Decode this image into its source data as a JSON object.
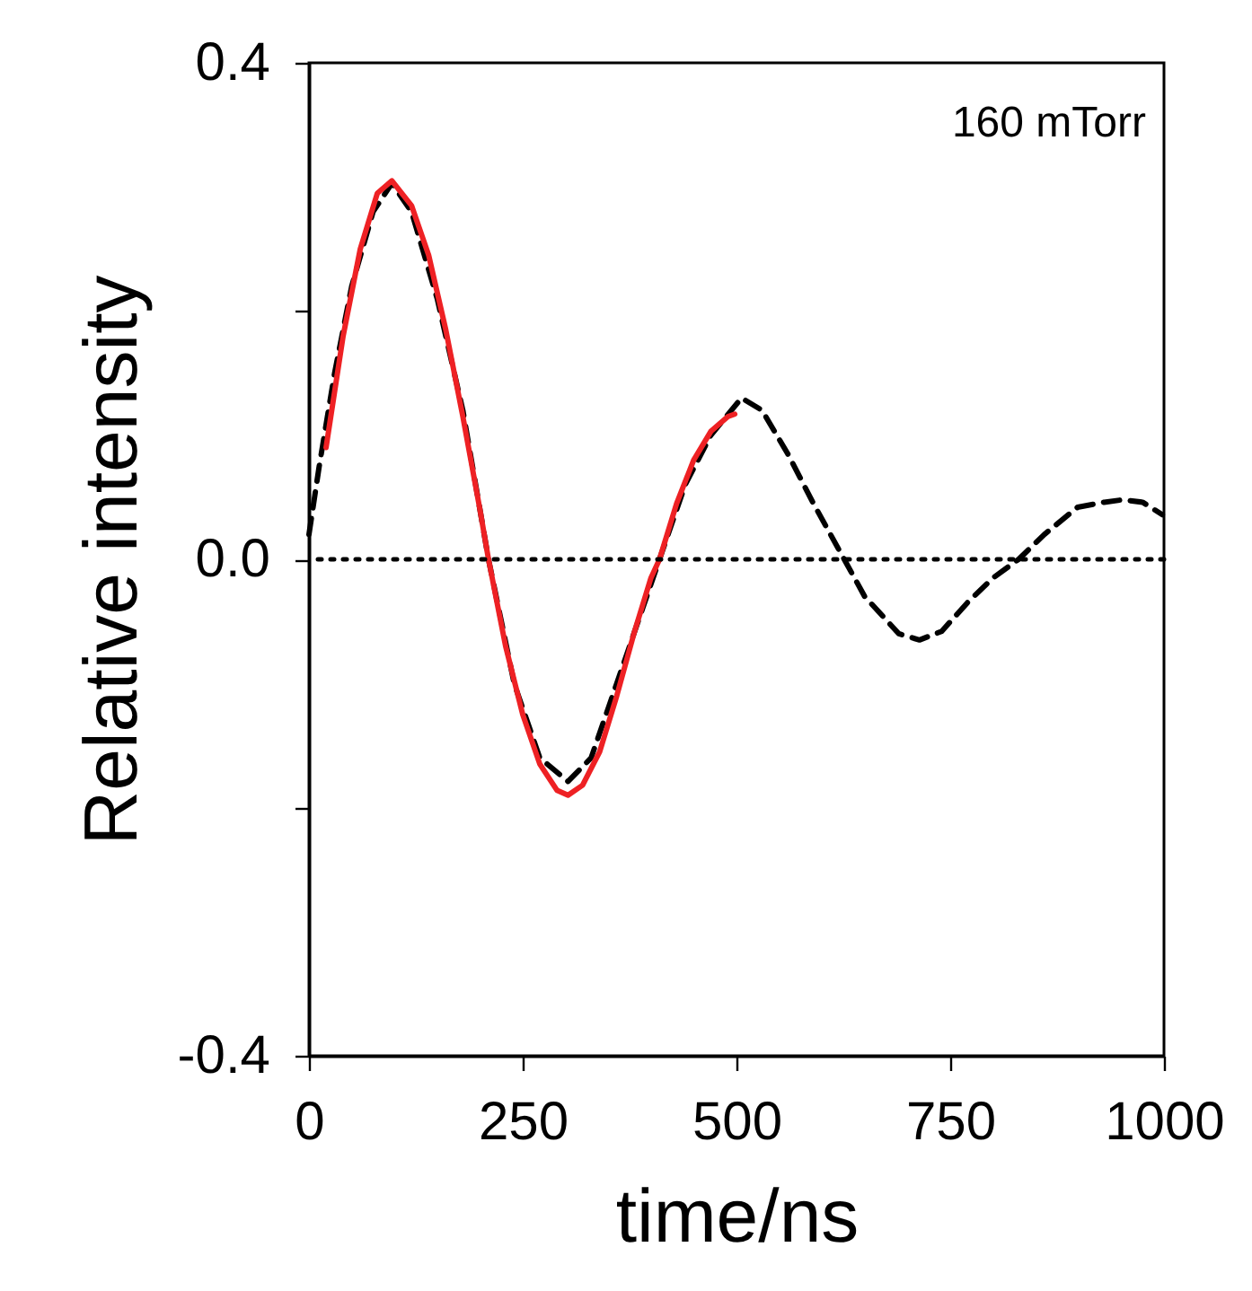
{
  "chart_data": {
    "type": "line",
    "xlabel": "time/ns",
    "ylabel": "Relative intensity",
    "xlim": [
      0,
      1000
    ],
    "xticks": [
      0,
      250,
      500,
      750,
      1000
    ],
    "ylim": [
      -0.4,
      0.4
    ],
    "yticks": [
      {
        "value": -0.4,
        "label": "-0.4"
      },
      {
        "value": -0.2,
        "label": null
      },
      {
        "value": 0,
        "label": "0.0"
      },
      {
        "value": 0.2,
        "label": null
      },
      {
        "value": 0.4,
        "label": "0.4"
      }
    ],
    "grid": false,
    "marker": "none",
    "annotations": [
      "160 mTorr"
    ],
    "ref_lines": [
      {
        "axis": "y",
        "value": 0,
        "label": null,
        "color": "#000000",
        "line_style": "dotted"
      }
    ],
    "series": [
      {
        "color": "#000000",
        "line_style": "dashed",
        "x": [
          0,
          12,
          30,
          50,
          75,
          97,
          120,
          150,
          180,
          210,
          240,
          270,
          303,
          330,
          360,
          390,
          410,
          440,
          470,
          506,
          530,
          560,
          590,
          626,
          650,
          690,
          714,
          740,
          770,
          800,
          830,
          860,
          899,
          930,
          952,
          975,
          998
        ],
        "values": [
          0.02,
          0.075,
          0.15,
          0.22,
          0.28,
          0.303,
          0.28,
          0.21,
          0.12,
          0.0,
          -0.1,
          -0.16,
          -0.179,
          -0.16,
          -0.1,
          -0.04,
          0.0,
          0.06,
          0.1,
          0.13,
          0.12,
          0.085,
          0.045,
          0.0,
          -0.03,
          -0.06,
          -0.065,
          -0.058,
          -0.035,
          -0.015,
          0.0,
          0.02,
          0.042,
          0.046,
          0.048,
          0.046,
          0.036
        ]
      },
      {
        "color": "#ee2124",
        "line_style": "solid",
        "x": [
          20,
          40,
          60,
          80,
          97,
          120,
          140,
          160,
          180,
          200,
          210,
          230,
          250,
          270,
          290,
          303,
          320,
          340,
          360,
          380,
          400,
          410,
          430,
          450,
          470,
          490,
          498
        ],
        "values": [
          0.09,
          0.18,
          0.25,
          0.295,
          0.305,
          0.285,
          0.245,
          0.185,
          0.115,
          0.04,
          0.0,
          -0.07,
          -0.125,
          -0.165,
          -0.186,
          -0.19,
          -0.182,
          -0.155,
          -0.11,
          -0.06,
          -0.015,
          0.0,
          0.045,
          0.08,
          0.103,
          0.115,
          0.117
        ]
      }
    ]
  }
}
